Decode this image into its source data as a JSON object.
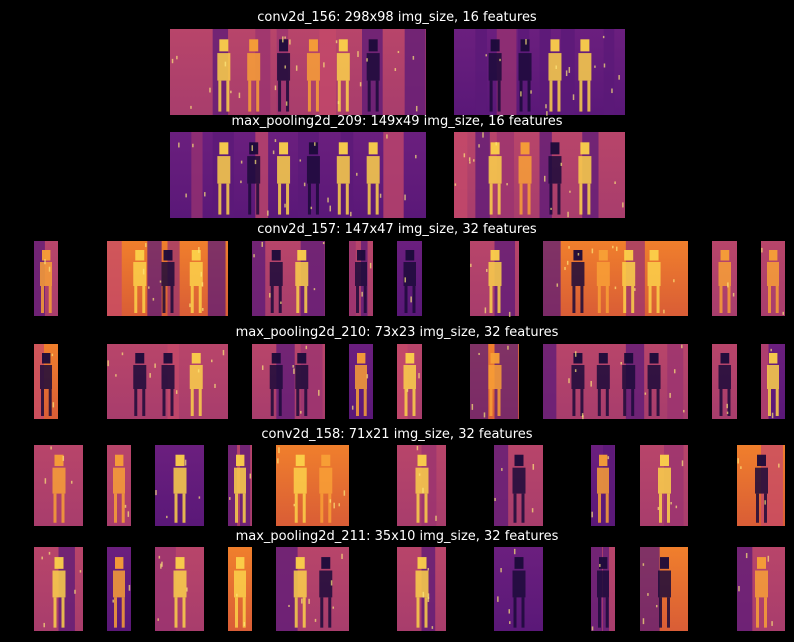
{
  "chart_data": {
    "type": "heatmap",
    "colormap": "inferno",
    "background_color": "#000000",
    "title_color": "#ffffff",
    "grid": false,
    "panels": [
      {
        "title": "conv2d_156: 298x98 img_size, 16 features",
        "layer": "conv2d_156",
        "img_size": [
          298,
          98
        ],
        "features": 16,
        "tiles_visible": 2
      },
      {
        "title": "max_pooling2d_209: 149x49 img_size, 16 features",
        "layer": "max_pooling2d_209",
        "img_size": [
          149,
          49
        ],
        "features": 16,
        "tiles_visible": 2
      },
      {
        "title": "conv2d_157: 147x47 img_size, 32 features",
        "layer": "conv2d_157",
        "img_size": [
          147,
          47
        ],
        "features": 32,
        "tiles_visible": 10
      },
      {
        "title": "max_pooling2d_210: 73x23 img_size, 32 features",
        "layer": "max_pooling2d_210",
        "img_size": [
          73,
          23
        ],
        "features": 32,
        "tiles_visible": 10
      },
      {
        "title": "conv2d_158: 71x21 img_size, 32 features",
        "layer": "conv2d_158",
        "img_size": [
          71,
          21
        ],
        "features": 32,
        "tiles_visible": 13
      },
      {
        "title": "max_pooling2d_211: 35x10 img_size, 32 features",
        "layer": "max_pooling2d_211",
        "img_size": [
          35,
          10
        ],
        "features": 32,
        "tiles_visible": 13
      }
    ]
  }
}
